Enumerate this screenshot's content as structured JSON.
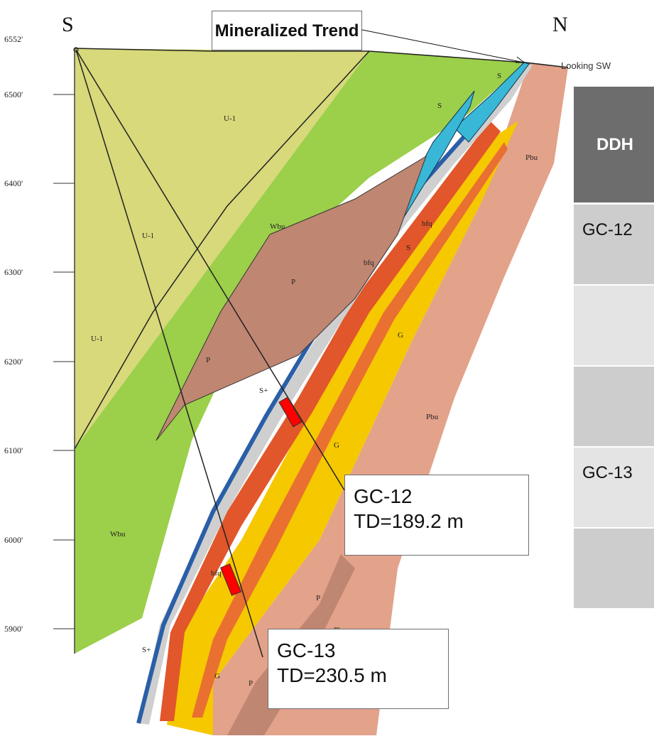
{
  "section": {
    "north_label": "N",
    "south_label": "S",
    "view_label": "Looking SW",
    "elevations": [
      "6552'",
      "6500'",
      "6400'",
      "6300'",
      "6200'",
      "6100'",
      "6000'",
      "5900'"
    ],
    "units": {
      "u1_top": "U-1",
      "u1_mid": "U-1",
      "u1_low": "U-1",
      "wbu_top": "Wbu",
      "wbu_low": "Wbu",
      "p_upper": "P",
      "p_mid": "P",
      "p_low1": "P",
      "p_low2": "P",
      "pbu_top": "Pbu",
      "pbu_mid": "Pbu",
      "pbu_low": "Pbu",
      "g_mid": "G",
      "g_low": "G",
      "g_bottom": "G",
      "s_top": "S",
      "s_mid": "S",
      "s_low": "S",
      "splus_mid": "S+",
      "splus_low": "S+",
      "bfq_top": "bfq",
      "bfq_mid": "bfq",
      "bfq_low": "bfq"
    }
  },
  "callouts": {
    "trend": "Mineralized Trend",
    "gc12_line1": "GC-12",
    "gc12_line2": "TD=189.2 m",
    "gc13_line1": "GC-13",
    "gc13_line2": "TD=230.5 m"
  },
  "table": {
    "header": "DDH",
    "rows": [
      "GC-12",
      "",
      "",
      "GC-13",
      ""
    ]
  },
  "colors": {
    "u1": "#d7d97a",
    "wbu": "#9ccf4a",
    "pbu": "#e3a28a",
    "p": "#bf8672",
    "g": "#f5c800",
    "fault_zone": "#cfcfcf",
    "s_unit": "#39b7d6",
    "contact": "#2a5fa8",
    "ore": "#ff0000"
  }
}
